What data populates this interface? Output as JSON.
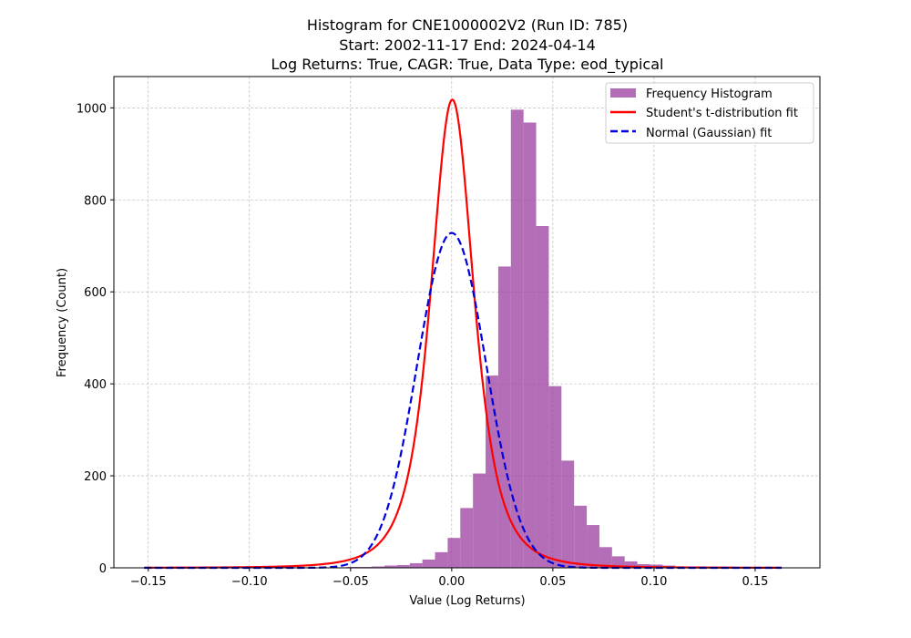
{
  "chart_data": {
    "type": "bar",
    "title_lines": [
      "Histogram for CNE1000002V2 (Run ID: 785)",
      "Start: 2002-11-17 End: 2024-04-14",
      "Log Returns: True, CAGR: True, Data Type: eod_typical"
    ],
    "xlabel": "Value (Log Returns)",
    "ylabel": "Frequency (Count)",
    "xlim": [
      -0.167,
      0.182
    ],
    "ylim": [
      0,
      1068
    ],
    "xticks": [
      -0.15,
      -0.1,
      -0.05,
      0.0,
      0.05,
      0.1,
      0.15
    ],
    "xtick_labels": [
      "−0.15",
      "−0.10",
      "−0.05",
      "0.00",
      "0.05",
      "0.10",
      "0.15"
    ],
    "yticks": [
      0,
      200,
      400,
      600,
      800,
      1000
    ],
    "ytick_labels": [
      "0",
      "200",
      "400",
      "600",
      "800",
      "1000"
    ],
    "grid": true,
    "legend_position": "top-right",
    "colors": {
      "histogram": "#9b3d9f",
      "t_fit": "#ff0000",
      "normal_fit": "#0000dd"
    },
    "histogram": {
      "name": "Frequency Histogram",
      "bin_width": 0.00625,
      "bin_edges_start": -0.152,
      "counts": [
        1,
        0,
        0,
        0,
        0,
        0,
        0,
        0,
        0,
        0,
        0,
        0,
        0,
        1,
        1,
        1,
        2,
        2,
        3,
        5,
        6,
        10,
        18,
        34,
        65,
        130,
        205,
        418,
        655,
        996,
        968,
        743,
        395,
        233,
        135,
        93,
        45,
        25,
        14,
        8,
        7,
        5,
        3,
        2,
        2,
        1,
        1,
        1,
        1,
        1,
        1,
        1
      ]
    },
    "series": [
      {
        "name": "Student's t-distribution fit",
        "style": "solid",
        "loc": 0.0003,
        "scale": 0.0113,
        "df": 2.9,
        "peak": 1018
      },
      {
        "name": "Normal (Gaussian) fit",
        "style": "dashed",
        "mean": 0.0,
        "std": 0.0171,
        "peak": 728
      }
    ],
    "fit_x_range": [
      -0.152,
      0.163
    ]
  }
}
